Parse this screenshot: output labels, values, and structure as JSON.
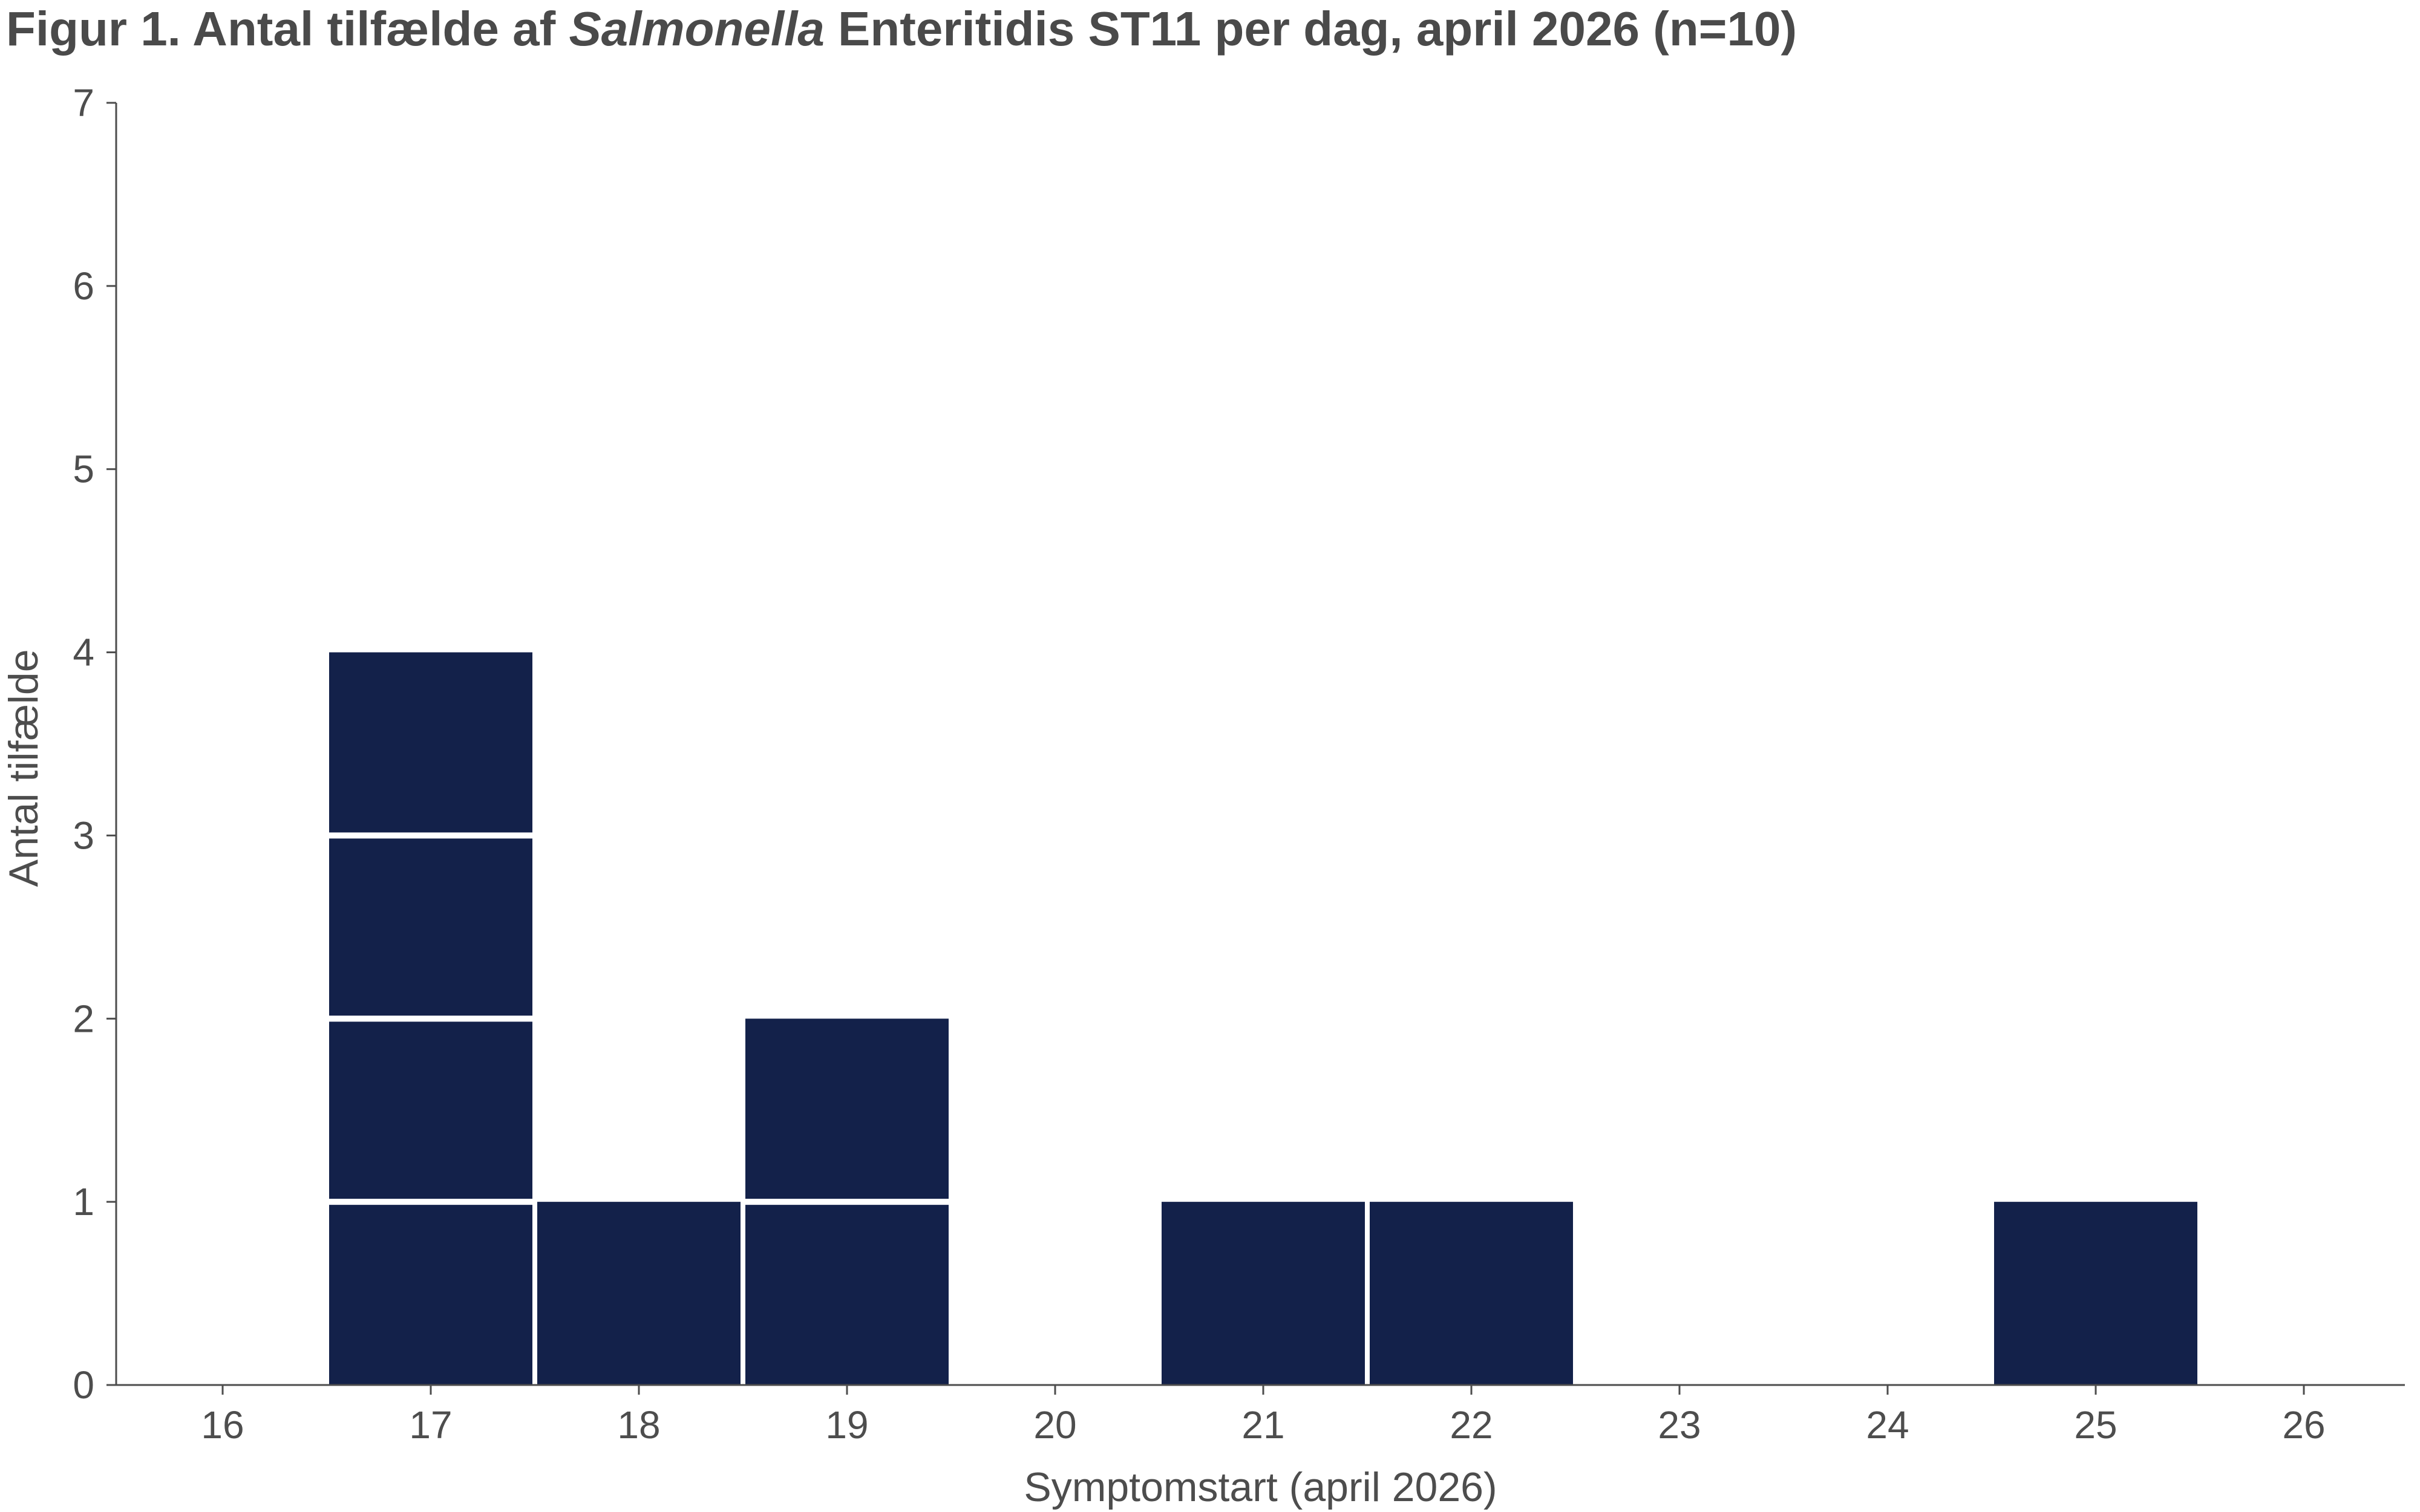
{
  "chart_data": {
    "type": "bar",
    "title_parts": {
      "prefix": "Figur 1. Antal tilfælde af ",
      "italic": "Salmonella",
      "suffix": " Enteritidis ST11 per dag, april 2026 (n=10)"
    },
    "xlabel": "Symptomstart (april 2026)",
    "ylabel": "Antal tilfælde",
    "categories": [
      "16",
      "17",
      "18",
      "19",
      "20",
      "21",
      "22",
      "23",
      "24",
      "25",
      "26"
    ],
    "values": [
      0,
      4,
      1,
      2,
      0,
      1,
      1,
      0,
      0,
      1,
      0
    ],
    "ylim": [
      0,
      7
    ],
    "yticks": [
      0,
      1,
      2,
      3,
      4,
      5,
      6,
      7
    ],
    "style": "stacked unit boxes (one box per case)",
    "grid": false,
    "colors": {
      "bar": "#13214a",
      "axis": "#4d4d4d",
      "text": "#4d4d4d",
      "title": "#4a4a4a"
    }
  }
}
